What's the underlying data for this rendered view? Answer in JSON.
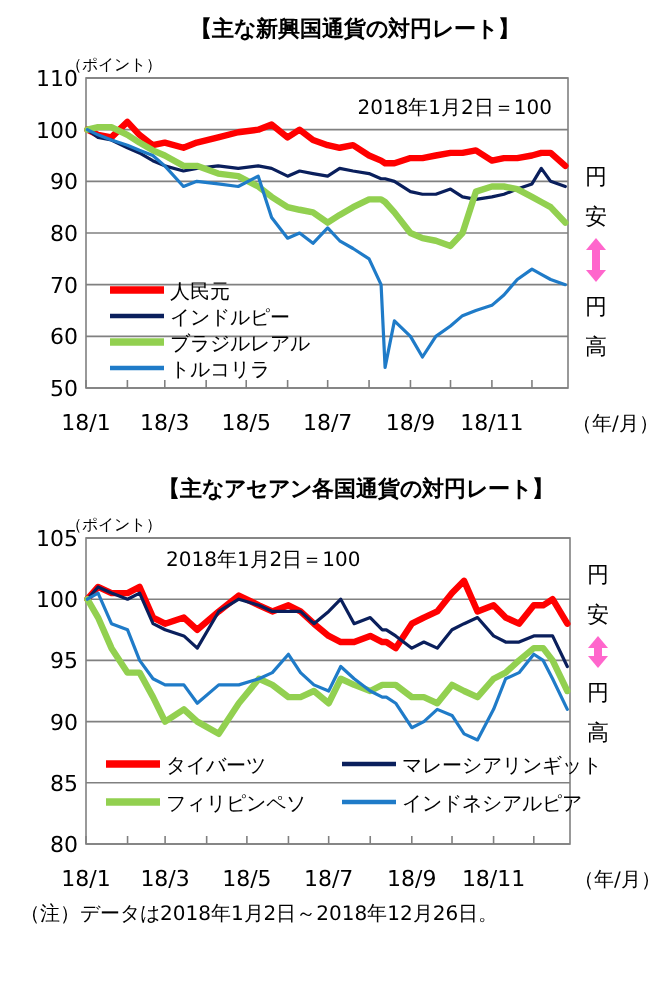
{
  "chart_data": [
    {
      "type": "line",
      "title": "【主な新興国通貨の対円レート】",
      "ylabel": "（ポイント）",
      "xlabel": "（年/月）",
      "annotations": [
        "2018年1月2日＝100",
        "円安",
        "円高"
      ],
      "x": [
        "2018-01-02",
        "2018-01-10",
        "2018-01-20",
        "2018-02-01",
        "2018-02-10",
        "2018-02-20",
        "2018-03-01",
        "2018-03-15",
        "2018-03-25",
        "2018-04-10",
        "2018-04-25",
        "2018-05-10",
        "2018-05-20",
        "2018-06-01",
        "2018-06-10",
        "2018-06-20",
        "2018-07-01",
        "2018-07-10",
        "2018-07-20",
        "2018-08-01",
        "2018-08-10",
        "2018-08-13",
        "2018-08-20",
        "2018-09-01",
        "2018-09-10",
        "2018-09-20",
        "2018-10-01",
        "2018-10-10",
        "2018-10-20",
        "2018-11-01",
        "2018-11-10",
        "2018-11-20",
        "2018-12-01",
        "2018-12-08",
        "2018-12-15",
        "2018-12-26"
      ],
      "xlim": [
        "2018-01-01",
        "2018-12-28"
      ],
      "xticks": [
        {
          "value": "2018-01-01",
          "label": "18/1"
        },
        {
          "value": "2018-02-01",
          "label": null
        },
        {
          "value": "2018-03-01",
          "label": "18/3"
        },
        {
          "value": "2018-04-01",
          "label": null
        },
        {
          "value": "2018-05-01",
          "label": "18/5"
        },
        {
          "value": "2018-06-01",
          "label": null
        },
        {
          "value": "2018-07-01",
          "label": "18/7"
        },
        {
          "value": "2018-08-01",
          "label": null
        },
        {
          "value": "2018-09-01",
          "label": "18/9"
        },
        {
          "value": "2018-10-01",
          "label": null
        },
        {
          "value": "2018-11-01",
          "label": "18/11"
        },
        {
          "value": "2018-12-01",
          "label": null
        }
      ],
      "ylim": [
        50,
        110
      ],
      "yticks": [
        50,
        60,
        70,
        80,
        90,
        100,
        110
      ],
      "grid": "y",
      "legend": "bottom left",
      "series": [
        {
          "name": "人民元",
          "color": "#ff0000",
          "values": [
            100,
            99,
            98.5,
            101.5,
            99,
            97,
            97.5,
            96.5,
            97.5,
            98.5,
            99.5,
            100,
            101,
            98.5,
            100,
            98,
            97,
            96.5,
            97,
            95,
            94,
            93.5,
            93.5,
            94.5,
            94.5,
            95,
            95.5,
            95.5,
            96,
            94,
            94.5,
            94.5,
            95,
            95.5,
            95.5,
            93
          ]
        },
        {
          "name": "インドルピー",
          "color": "#0a1f5c",
          "values": [
            100,
            98.5,
            98,
            96.5,
            95.5,
            94,
            93,
            92,
            92.5,
            93,
            92.5,
            93,
            92.5,
            91,
            92,
            91.5,
            91,
            92.5,
            92,
            91.5,
            90.5,
            90.5,
            90,
            88,
            87.5,
            87.5,
            88.5,
            87,
            86.5,
            87,
            87.5,
            88.5,
            89.5,
            92.5,
            90,
            89
          ]
        },
        {
          "name": "ブラジルレアル",
          "color": "#92d050",
          "values": [
            100,
            100.5,
            100.5,
            99,
            97.5,
            96,
            95,
            93,
            93,
            91.5,
            91,
            89,
            87,
            85,
            84.5,
            84,
            82,
            83.5,
            85,
            86.5,
            86.5,
            86,
            84,
            80,
            79,
            78.5,
            77.5,
            80,
            88,
            89,
            89,
            88.5,
            87,
            86,
            85,
            82
          ]
        },
        {
          "name": "トルコリラ",
          "color": "#1f7bc8",
          "values": [
            100,
            99,
            98,
            97,
            96,
            95,
            93,
            89,
            90,
            89.5,
            89,
            91,
            83,
            79,
            80,
            78,
            81,
            78.5,
            77,
            75,
            70,
            54,
            63,
            60,
            56,
            60,
            62,
            64,
            65,
            66,
            68,
            71,
            73,
            72,
            71,
            70
          ]
        }
      ]
    },
    {
      "type": "line",
      "title": "【主なアセアン各国通貨の対円レート】",
      "ylabel": "（ポイント）",
      "xlabel": "（年/月）",
      "annotations": [
        "2018年1月2日＝100",
        "円安",
        "円高",
        "（注）データは2018年1月2日～2018年12月26日。"
      ],
      "x": [
        "2018-01-02",
        "2018-01-10",
        "2018-01-20",
        "2018-02-01",
        "2018-02-10",
        "2018-02-20",
        "2018-03-01",
        "2018-03-15",
        "2018-03-25",
        "2018-04-10",
        "2018-04-25",
        "2018-05-10",
        "2018-05-20",
        "2018-06-01",
        "2018-06-10",
        "2018-06-20",
        "2018-07-01",
        "2018-07-10",
        "2018-07-20",
        "2018-08-01",
        "2018-08-10",
        "2018-08-13",
        "2018-08-20",
        "2018-09-01",
        "2018-09-10",
        "2018-09-20",
        "2018-10-01",
        "2018-10-10",
        "2018-10-20",
        "2018-11-01",
        "2018-11-10",
        "2018-11-20",
        "2018-12-01",
        "2018-12-08",
        "2018-12-15",
        "2018-12-26"
      ],
      "xlim": [
        "2018-01-01",
        "2018-12-28"
      ],
      "xticks": [
        {
          "value": "2018-01-01",
          "label": "18/1"
        },
        {
          "value": "2018-02-01",
          "label": null
        },
        {
          "value": "2018-03-01",
          "label": "18/3"
        },
        {
          "value": "2018-04-01",
          "label": null
        },
        {
          "value": "2018-05-01",
          "label": "18/5"
        },
        {
          "value": "2018-06-01",
          "label": null
        },
        {
          "value": "2018-07-01",
          "label": "18/7"
        },
        {
          "value": "2018-08-01",
          "label": null
        },
        {
          "value": "2018-09-01",
          "label": "18/9"
        },
        {
          "value": "2018-10-01",
          "label": null
        },
        {
          "value": "2018-11-01",
          "label": "18/11"
        },
        {
          "value": "2018-12-01",
          "label": null
        }
      ],
      "ylim": [
        80,
        105
      ],
      "yticks": [
        80,
        85,
        90,
        95,
        100,
        105
      ],
      "grid": "y",
      "legend": "bottom",
      "series": [
        {
          "name": "タイバーツ",
          "color": "#ff0000",
          "values": [
            100,
            101,
            100.5,
            100.5,
            101,
            98.5,
            98,
            98.5,
            97.5,
            99,
            100.3,
            99.5,
            99,
            99.5,
            99,
            98,
            97,
            96.5,
            96.5,
            97,
            96.5,
            96.5,
            96,
            98,
            98.5,
            99,
            100.5,
            101.5,
            99,
            99.5,
            98.5,
            98,
            99.5,
            99.5,
            100,
            98
          ]
        },
        {
          "name": "マレーシアリンギット",
          "color": "#0a1f5c",
          "values": [
            100,
            101,
            100.5,
            100,
            100.5,
            98,
            97.5,
            97,
            96,
            99,
            100,
            99.5,
            99,
            99,
            99,
            98,
            99,
            100,
            98,
            98.5,
            97.5,
            97.5,
            97,
            96,
            96.5,
            96,
            97.5,
            98,
            98.5,
            97,
            96.5,
            96.5,
            97,
            97,
            97,
            94.5
          ]
        },
        {
          "name": "フィリピンペソ",
          "color": "#92d050",
          "values": [
            100,
            98.5,
            96,
            94,
            94,
            92,
            90,
            91,
            90,
            89,
            91.5,
            93.5,
            93,
            92,
            92,
            92.5,
            91.5,
            93.5,
            93,
            92.5,
            93,
            93,
            93,
            92,
            92,
            91.5,
            93,
            92.5,
            92,
            93.5,
            94,
            95,
            96,
            96,
            95,
            92.5
          ]
        },
        {
          "name": "インドネシアルピア",
          "color": "#1f7bc8",
          "values": [
            100,
            100.5,
            98,
            97.5,
            95,
            93.5,
            93,
            93,
            91.5,
            93,
            93,
            93.5,
            94,
            95.5,
            94,
            93,
            92.5,
            94.5,
            93.5,
            92.5,
            92,
            92,
            91.5,
            89.5,
            90,
            91,
            90.5,
            89,
            88.5,
            91,
            93.5,
            94,
            95.5,
            95,
            93.5,
            91
          ]
        }
      ]
    }
  ]
}
